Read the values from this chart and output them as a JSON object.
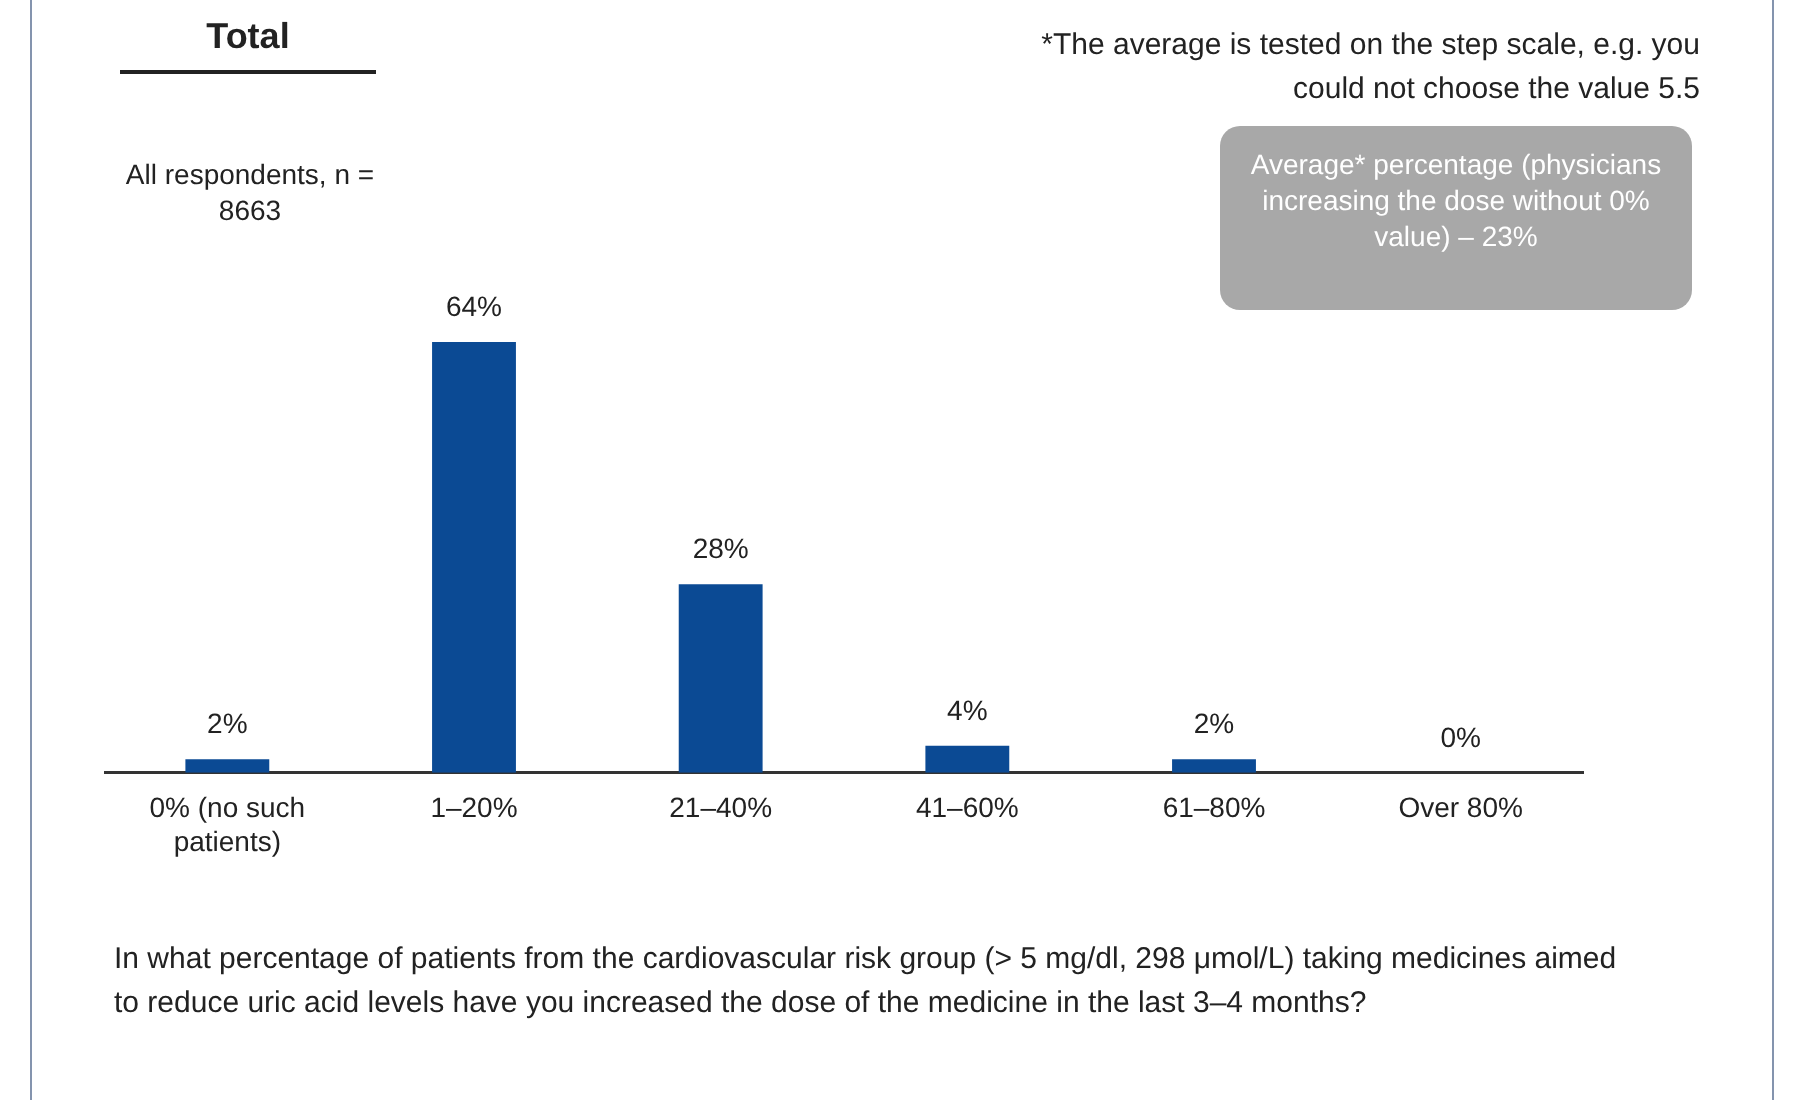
{
  "chart_data": {
    "type": "bar",
    "title": "Total",
    "subtitle": "All respondents, n = 8663",
    "categories": [
      "0% (no such patients)",
      "1–20%",
      "21–40%",
      "41–60%",
      "61–80%",
      "Over 80%"
    ],
    "values": [
      2,
      64,
      28,
      4,
      2,
      0
    ],
    "value_labels": [
      "2%",
      "64%",
      "28%",
      "4%",
      "2%",
      "0%"
    ],
    "color": "#0b4a94",
    "annotations": [
      "*The average is tested on the step scale, e.g. you could not choose the value 5.5",
      "Average* percentage (physicians increasing the dose without 0% value) – 23%",
      "In what percentage of patients from the cardiovascular risk group (> 5 mg/dl, 298 μmol/L) taking medicines aimed to reduce uric acid levels have you increased the dose of the medicine in the last 3–4 months?"
    ],
    "grid": false,
    "legend": false,
    "tick_labels": "x"
  }
}
